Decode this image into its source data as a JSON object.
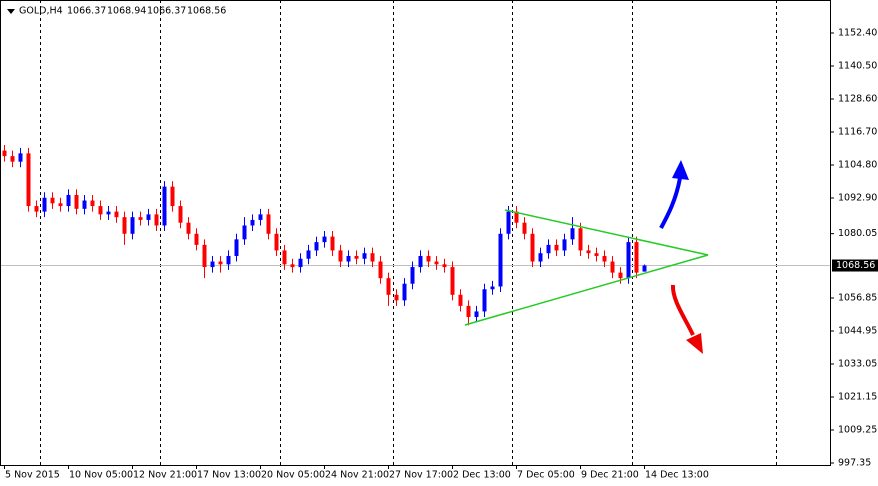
{
  "chart_data": {
    "type": "candlestick",
    "symbol": "GOLD,H4",
    "categories": [
      "5 Nov 2015",
      null,
      null,
      null,
      null,
      null,
      null,
      null,
      "10 Nov 05:00",
      null,
      null,
      null,
      null,
      null,
      null,
      null,
      "12 Nov 21:00",
      null,
      null,
      null,
      null,
      null,
      null,
      null,
      "17 Nov 13:00",
      null,
      null,
      null,
      null,
      null,
      null,
      null,
      "20 Nov 05:00",
      null,
      null,
      null,
      null,
      null,
      null,
      null,
      "24 Nov 21:00",
      null,
      null,
      null,
      null,
      null,
      null,
      null,
      "27 Nov 17:00",
      null,
      null,
      null,
      null,
      null,
      null,
      null,
      "2 Dec 13:00",
      null,
      null,
      null,
      null,
      null,
      null,
      null,
      "7 Dec 05:00",
      null,
      null,
      null,
      null,
      null,
      null,
      null,
      "9 Dec 21:00",
      null,
      null,
      null,
      null,
      null,
      null,
      null,
      "14 Dec 13:00"
    ],
    "open": [
      1110,
      1108,
      1106,
      1109,
      1090,
      1088,
      1093,
      1091,
      1090,
      1094,
      1089,
      1092,
      1090,
      1087,
      1088,
      1086,
      1080,
      1086,
      1085,
      1087,
      1083,
      1097,
      1090,
      1084,
      1080,
      1076,
      1068,
      1070,
      1069,
      1072,
      1078,
      1083,
      1085,
      1087,
      1080,
      1074,
      1069,
      1068,
      1071,
      1074,
      1077,
      1079,
      1074,
      1070,
      1072,
      1071,
      1073,
      1070,
      1064,
      1058,
      1056,
      1062,
      1068,
      1072,
      1070,
      1069,
      1068,
      1058,
      1054,
      1050,
      1052,
      1060,
      1061,
      1080,
      1088,
      1084,
      1080,
      1070,
      1073,
      1076,
      1074,
      1078,
      1082,
      1074,
      1073,
      1072,
      1070,
      1066,
      1064,
      1077,
      1066.37
    ],
    "high": [
      1112,
      1110,
      1111,
      1111,
      1092,
      1095,
      1095,
      1093,
      1096,
      1096,
      1094,
      1094,
      1092,
      1090,
      1090,
      1088,
      1088,
      1088,
      1089,
      1089,
      1099,
      1099,
      1092,
      1086,
      1082,
      1078,
      1072,
      1072,
      1074,
      1080,
      1086,
      1087,
      1089,
      1089,
      1082,
      1076,
      1071,
      1073,
      1076,
      1079,
      1081,
      1081,
      1076,
      1074,
      1074,
      1075,
      1075,
      1072,
      1066,
      1060,
      1064,
      1070,
      1074,
      1074,
      1072,
      1071,
      1070,
      1060,
      1056,
      1054,
      1062,
      1063,
      1082,
      1090,
      1090,
      1086,
      1082,
      1075,
      1078,
      1078,
      1080,
      1086,
      1084,
      1076,
      1075,
      1074,
      1072,
      1068,
      1079,
      1079,
      1068.94
    ],
    "low": [
      1106,
      1104,
      1104,
      1088,
      1086,
      1086,
      1089,
      1088,
      1088,
      1087,
      1087,
      1088,
      1085,
      1085,
      1084,
      1076,
      1078,
      1083,
      1083,
      1081,
      1081,
      1088,
      1082,
      1078,
      1074,
      1064,
      1066,
      1066,
      1067,
      1070,
      1076,
      1081,
      1083,
      1078,
      1072,
      1067,
      1066,
      1066,
      1069,
      1072,
      1075,
      1072,
      1068,
      1068,
      1069,
      1069,
      1068,
      1062,
      1054,
      1054,
      1054,
      1060,
      1066,
      1068,
      1067,
      1066,
      1056,
      1052,
      1047,
      1048,
      1050,
      1058,
      1059,
      1078,
      1082,
      1078,
      1068,
      1068,
      1071,
      1072,
      1072,
      1076,
      1072,
      1071,
      1070,
      1068,
      1064,
      1062,
      1062,
      1064,
      1066.37
    ],
    "close": [
      1108,
      1106,
      1109,
      1090,
      1088,
      1093,
      1091,
      1090,
      1094,
      1089,
      1092,
      1090,
      1087,
      1088,
      1086,
      1080,
      1086,
      1085,
      1087,
      1083,
      1097,
      1090,
      1084,
      1080,
      1076,
      1068,
      1070,
      1069,
      1072,
      1078,
      1083,
      1085,
      1087,
      1080,
      1074,
      1069,
      1068,
      1071,
      1074,
      1077,
      1079,
      1074,
      1070,
      1072,
      1071,
      1073,
      1070,
      1064,
      1058,
      1056,
      1062,
      1068,
      1072,
      1070,
      1069,
      1068,
      1058,
      1054,
      1050,
      1052,
      1060,
      1061,
      1080,
      1088,
      1084,
      1080,
      1070,
      1073,
      1076,
      1074,
      1078,
      1082,
      1074,
      1073,
      1072,
      1070,
      1066,
      1064,
      1077,
      1066,
      1068.56
    ],
    "up_color": "#0000ff",
    "down_color": "#ff0000",
    "ylim": [
      996.63,
      1164.3
    ],
    "yticks": [
      {
        "value": 1152.4,
        "label": "1152.40"
      },
      {
        "value": 1140.5,
        "label": "1140.50"
      },
      {
        "value": 1128.6,
        "label": "1128.60"
      },
      {
        "value": 1116.7,
        "label": "1116.70"
      },
      {
        "value": 1104.8,
        "label": "1104.80"
      },
      {
        "value": 1092.9,
        "label": "1092.90"
      },
      {
        "value": 1080.05,
        "label": "1080.05"
      },
      {
        "value": 1056.85,
        "label": "1056.85"
      },
      {
        "value": 1044.95,
        "label": "1044.95"
      },
      {
        "value": 1033.05,
        "label": "1033.05"
      },
      {
        "value": 1021.15,
        "label": "1021.15"
      },
      {
        "value": 1009.25,
        "label": "1009.25"
      },
      {
        "value": 997.35,
        "label": "997.35"
      }
    ]
  }
}
